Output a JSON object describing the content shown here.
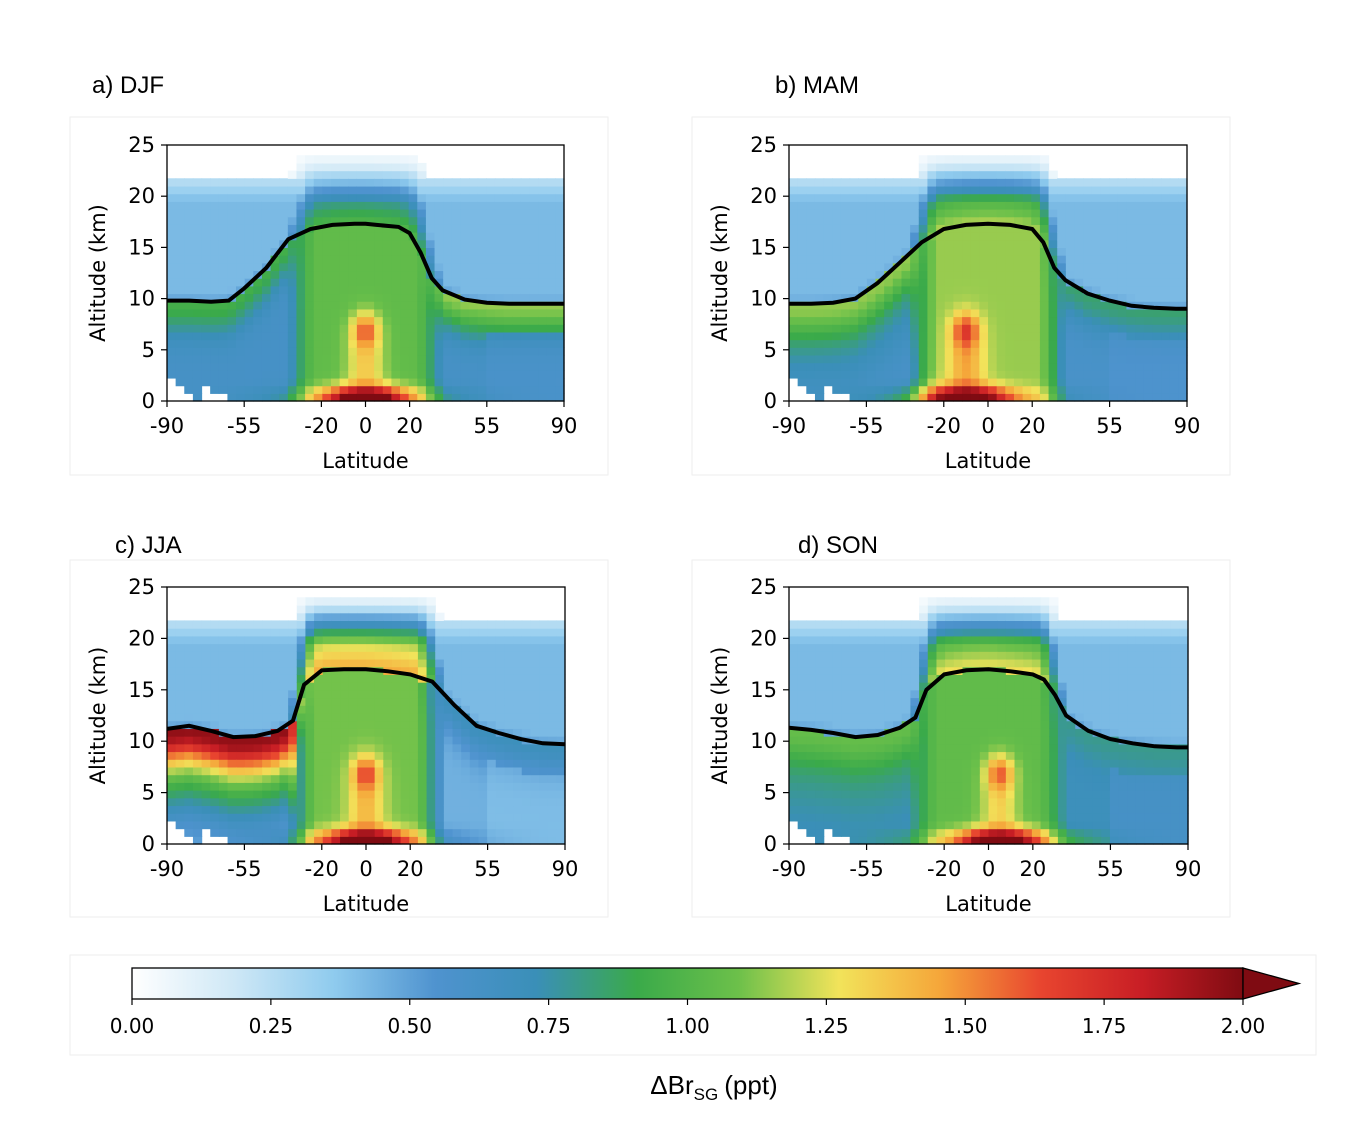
{
  "figure": {
    "colorbar": {
      "label_main": "ΔBr",
      "label_sub": "SG",
      "label_unit": "(ppt)",
      "ticks": [
        "0.00",
        "0.25",
        "0.50",
        "0.75",
        "1.00",
        "1.25",
        "1.50",
        "1.75",
        "2.00"
      ],
      "range": [
        0,
        2
      ],
      "extend": "max",
      "stops": [
        "#ffffff",
        "#cfe8f6",
        "#8fcbee",
        "#4f93cf",
        "#3a8fb8",
        "#3aaa4a",
        "#6cc04a",
        "#f2e35a",
        "#f5a63a",
        "#e8452f",
        "#c81e25",
        "#7f0b12"
      ]
    }
  },
  "chart_data": [
    {
      "type": "heatmap",
      "title": "a) DJF",
      "xlabel": "Latitude",
      "ylabel": "Altitude (km)",
      "xticks": [
        "-90",
        "-55",
        "-20",
        "0",
        "20",
        "55",
        "90"
      ],
      "yticks": [
        "0",
        "5",
        "10",
        "15",
        "20",
        "25"
      ],
      "xlim": [
        -90,
        90
      ],
      "ylim": [
        0,
        25
      ],
      "tropopause": {
        "lat": [
          -90,
          -80,
          -70,
          -62,
          -55,
          -45,
          -35,
          -25,
          -15,
          -5,
          0,
          5,
          15,
          20,
          25,
          30,
          35,
          45,
          55,
          65,
          75,
          85,
          90
        ],
        "alt": [
          9.8,
          9.8,
          9.7,
          9.8,
          11.0,
          13.0,
          15.8,
          16.8,
          17.2,
          17.3,
          17.3,
          17.2,
          17.0,
          16.4,
          14.5,
          12.0,
          10.8,
          9.9,
          9.6,
          9.5,
          9.5,
          9.5,
          9.5
        ]
      },
      "field": {
        "upper_max": 0.55,
        "strat_tropics": 1.0,
        "trop_tropics": 1.05,
        "trop_extra": 0.62,
        "band_south": 0.95,
        "band_north": 1.15,
        "surface_max": 1.95,
        "core_max": 1.5,
        "core_lat": 0,
        "sh_boost": 0,
        "north_polar_low": 0.55
      }
    },
    {
      "type": "heatmap",
      "title": "b) MAM",
      "xlabel": "Latitude",
      "ylabel": "Altitude (km)",
      "xticks": [
        "-90",
        "-55",
        "-20",
        "0",
        "20",
        "55",
        "90"
      ],
      "yticks": [
        "0",
        "5",
        "10",
        "15",
        "20",
        "25"
      ],
      "xlim": [
        -90,
        90
      ],
      "ylim": [
        0,
        25
      ],
      "tropopause": {
        "lat": [
          -90,
          -80,
          -70,
          -60,
          -50,
          -40,
          -30,
          -20,
          -10,
          0,
          10,
          20,
          25,
          30,
          35,
          45,
          55,
          65,
          75,
          85,
          90
        ],
        "alt": [
          9.5,
          9.5,
          9.6,
          10.0,
          11.5,
          13.5,
          15.5,
          16.8,
          17.2,
          17.3,
          17.2,
          16.8,
          15.5,
          13.0,
          11.8,
          10.5,
          9.8,
          9.3,
          9.1,
          9.0,
          9.0
        ]
      },
      "field": {
        "upper_max": 0.55,
        "strat_tropics": 1.2,
        "trop_tropics": 1.15,
        "trop_extra": 0.6,
        "band_south": 1.05,
        "band_north": 0.85,
        "surface_max": 1.95,
        "core_max": 1.5,
        "core_lat": -10,
        "sh_boost": 0.15,
        "north_polar_low": 0.5
      }
    },
    {
      "type": "heatmap",
      "title": "c) JJA",
      "xlabel": "Latitude",
      "ylabel": "Altitude (km)",
      "xticks": [
        "-90",
        "-55",
        "-20",
        "0",
        "20",
        "55",
        "90"
      ],
      "yticks": [
        "0",
        "5",
        "10",
        "15",
        "20",
        "25"
      ],
      "xlim": [
        -90,
        90
      ],
      "ylim": [
        0,
        25
      ],
      "tropopause": {
        "lat": [
          -90,
          -80,
          -70,
          -60,
          -50,
          -40,
          -33,
          -28,
          -20,
          -10,
          0,
          10,
          20,
          30,
          40,
          50,
          60,
          70,
          80,
          90
        ],
        "alt": [
          11.2,
          11.5,
          11.0,
          10.4,
          10.5,
          11.0,
          12.0,
          15.5,
          16.9,
          17.0,
          17.0,
          16.8,
          16.5,
          15.8,
          13.5,
          11.5,
          10.8,
          10.2,
          9.8,
          9.7
        ]
      },
      "field": {
        "upper_max": 0.55,
        "strat_tropics": 1.45,
        "trop_tropics": 1.1,
        "trop_extra": 0.45,
        "band_south": 1.6,
        "band_north": 0.7,
        "surface_max": 1.95,
        "core_max": 1.5,
        "core_lat": 0,
        "sh_boost": 0.55,
        "north_polar_low": 0.35
      }
    },
    {
      "type": "heatmap",
      "title": "d) SON",
      "xlabel": "Latitude",
      "ylabel": "Altitude (km)",
      "xticks": [
        "-90",
        "-55",
        "-20",
        "0",
        "20",
        "55",
        "90"
      ],
      "yticks": [
        "0",
        "5",
        "10",
        "15",
        "20",
        "25"
      ],
      "xlim": [
        -90,
        90
      ],
      "ylim": [
        0,
        25
      ],
      "tropopause": {
        "lat": [
          -90,
          -80,
          -70,
          -60,
          -50,
          -40,
          -33,
          -28,
          -20,
          -10,
          0,
          10,
          20,
          25,
          30,
          35,
          45,
          55,
          65,
          75,
          85,
          90
        ],
        "alt": [
          11.3,
          11.1,
          10.8,
          10.4,
          10.6,
          11.3,
          12.3,
          15.0,
          16.5,
          16.9,
          17.0,
          16.8,
          16.5,
          16.0,
          14.5,
          12.5,
          11.0,
          10.2,
          9.8,
          9.5,
          9.4,
          9.4
        ]
      },
      "field": {
        "upper_max": 0.55,
        "strat_tropics": 1.3,
        "trop_tropics": 1.05,
        "trop_extra": 0.7,
        "band_south": 1.0,
        "band_north": 0.8,
        "surface_max": 1.95,
        "core_max": 1.45,
        "core_lat": 5,
        "sh_boost": 0.1,
        "north_polar_low": 0.5
      }
    }
  ]
}
